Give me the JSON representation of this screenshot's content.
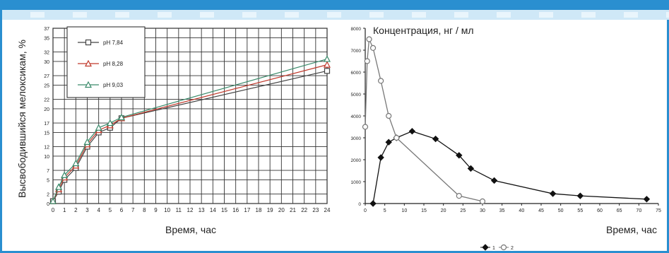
{
  "chart_data": [
    {
      "type": "line",
      "ylabel": "Высвободившийся мелоксикам, %",
      "xlabel": "Время, час",
      "xlim": [
        0,
        24
      ],
      "ylim": [
        0,
        37
      ],
      "x_ticks": [
        0,
        1,
        2,
        3,
        4,
        5,
        6,
        7,
        8,
        9,
        10,
        11,
        12,
        13,
        14,
        15,
        16,
        17,
        18,
        19,
        20,
        21,
        22,
        23,
        24
      ],
      "y_ticks": [
        0,
        2,
        5,
        7,
        10,
        12,
        15,
        17,
        20,
        22,
        25,
        27,
        30,
        32,
        35,
        37
      ],
      "grid": true,
      "legend_position": "top-left",
      "series": [
        {
          "name": "pH 7,84",
          "color": "#444444",
          "marker": "square",
          "x": [
            0,
            0.5,
            1,
            2,
            3,
            4,
            5,
            6,
            24
          ],
          "y": [
            0.5,
            2.5,
            5,
            7.5,
            12,
            15,
            16,
            18,
            28
          ]
        },
        {
          "name": "pH 8,28",
          "color": "#c0392b",
          "marker": "triangle",
          "x": [
            0,
            0.5,
            1,
            2,
            3,
            4,
            5,
            6,
            24
          ],
          "y": [
            0.5,
            3,
            5.5,
            8,
            12.5,
            15.5,
            16.5,
            18,
            29.3
          ]
        },
        {
          "name": "pH 9,03",
          "color": "#3a8a6a",
          "marker": "triangle",
          "x": [
            0,
            0.5,
            1,
            2,
            3,
            4,
            5,
            6,
            24
          ],
          "y": [
            0.5,
            3.5,
            6,
            8.5,
            13,
            16,
            17,
            18.2,
            30.5
          ]
        }
      ]
    },
    {
      "type": "line",
      "title": "Концентрация, нг / мл",
      "xlabel": "Время, час",
      "xlim": [
        0,
        75
      ],
      "ylim": [
        0,
        8000
      ],
      "x_ticks": [
        0,
        5,
        10,
        15,
        20,
        25,
        30,
        35,
        40,
        45,
        50,
        55,
        60,
        65,
        70,
        75
      ],
      "y_ticks": [
        0,
        1000,
        2000,
        3000,
        4000,
        5000,
        6000,
        7000,
        8000
      ],
      "grid": false,
      "legend_position": "bottom",
      "legend_items": [
        "1",
        "2"
      ],
      "series": [
        {
          "name": "1",
          "color": "#111111",
          "marker": "filled-diamond",
          "x": [
            2,
            4,
            6,
            8,
            12,
            18,
            24,
            27,
            33,
            48,
            55,
            72
          ],
          "y": [
            0,
            2100,
            2800,
            3000,
            3300,
            2950,
            2200,
            1600,
            1050,
            450,
            350,
            200
          ]
        },
        {
          "name": "2",
          "color": "#777777",
          "marker": "open-circle",
          "x": [
            0,
            0.5,
            1,
            2,
            4,
            6,
            8,
            24,
            30
          ],
          "y": [
            3500,
            6500,
            7500,
            7100,
            5600,
            4000,
            3000,
            350,
            100
          ]
        }
      ]
    }
  ]
}
